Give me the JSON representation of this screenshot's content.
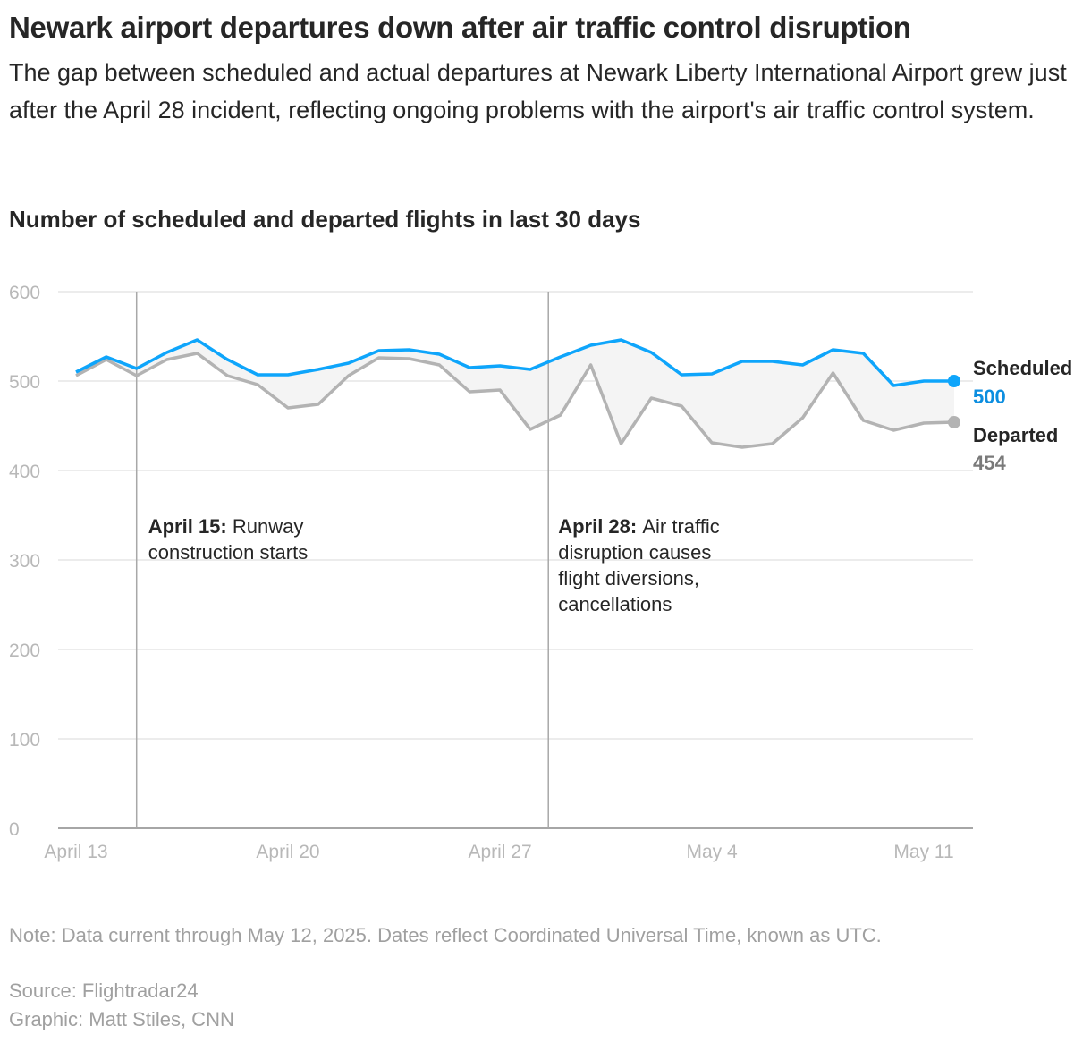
{
  "title": "Newark airport departures down after air traffic control disruption",
  "subtitle": "The gap between scheduled and actual departures at Newark Liberty International Airport grew just after the April 28 incident, reflecting ongoing problems with the airport's air traffic control system.",
  "note": "Note: Data current through May 12, 2025. Dates reflect Coordinated Universal Time, known as UTC.",
  "source": "Source: Flightradar24",
  "credit": "Graphic: Matt Stiles, CNN",
  "chart_data": {
    "type": "line",
    "title": "Number of scheduled and departed flights in last 30 days",
    "x": [
      "Apr 13",
      "Apr 14",
      "Apr 15",
      "Apr 16",
      "Apr 17",
      "Apr 18",
      "Apr 19",
      "Apr 20",
      "Apr 21",
      "Apr 22",
      "Apr 23",
      "Apr 24",
      "Apr 25",
      "Apr 26",
      "Apr 27",
      "Apr 28",
      "Apr 29",
      "Apr 30",
      "May 1",
      "May 2",
      "May 3",
      "May 4",
      "May 5",
      "May 6",
      "May 7",
      "May 8",
      "May 9",
      "May 10",
      "May 11",
      "May 12"
    ],
    "xticks": [
      "April 13",
      "April 20",
      "April 27",
      "May 4",
      "May 11"
    ],
    "yticks": [
      0,
      100,
      200,
      300,
      400,
      500,
      600
    ],
    "ylim": [
      0,
      600
    ],
    "grid": true,
    "series": [
      {
        "name": "Scheduled",
        "color": "#0ea5fb",
        "label_value": "500",
        "values": [
          510,
          527,
          514,
          532,
          546,
          524,
          507,
          507,
          513,
          520,
          534,
          535,
          530,
          515,
          517,
          513,
          527,
          540,
          546,
          532,
          507,
          508,
          522,
          522,
          518,
          535,
          531,
          495,
          500,
          500
        ]
      },
      {
        "name": "Departed",
        "color": "#b3b3b3",
        "label_value": "454",
        "values": [
          506,
          524,
          506,
          524,
          531,
          506,
          496,
          470,
          474,
          506,
          526,
          525,
          518,
          488,
          490,
          446,
          462,
          518,
          430,
          481,
          472,
          431,
          426,
          430,
          459,
          509,
          456,
          445,
          453,
          454
        ]
      }
    ],
    "annotations": [
      {
        "date": "April 15",
        "bold": "April 15:",
        "text": "Runway construction starts",
        "lines": [
          "Runway",
          "construction starts"
        ]
      },
      {
        "date": "April 28",
        "bold": "April 28:",
        "text": "Air traffic disruption causes flight diversions, cancellations",
        "lines": [
          "Air traffic",
          "disruption causes",
          "flight diversions,",
          "cancellations"
        ]
      }
    ]
  }
}
